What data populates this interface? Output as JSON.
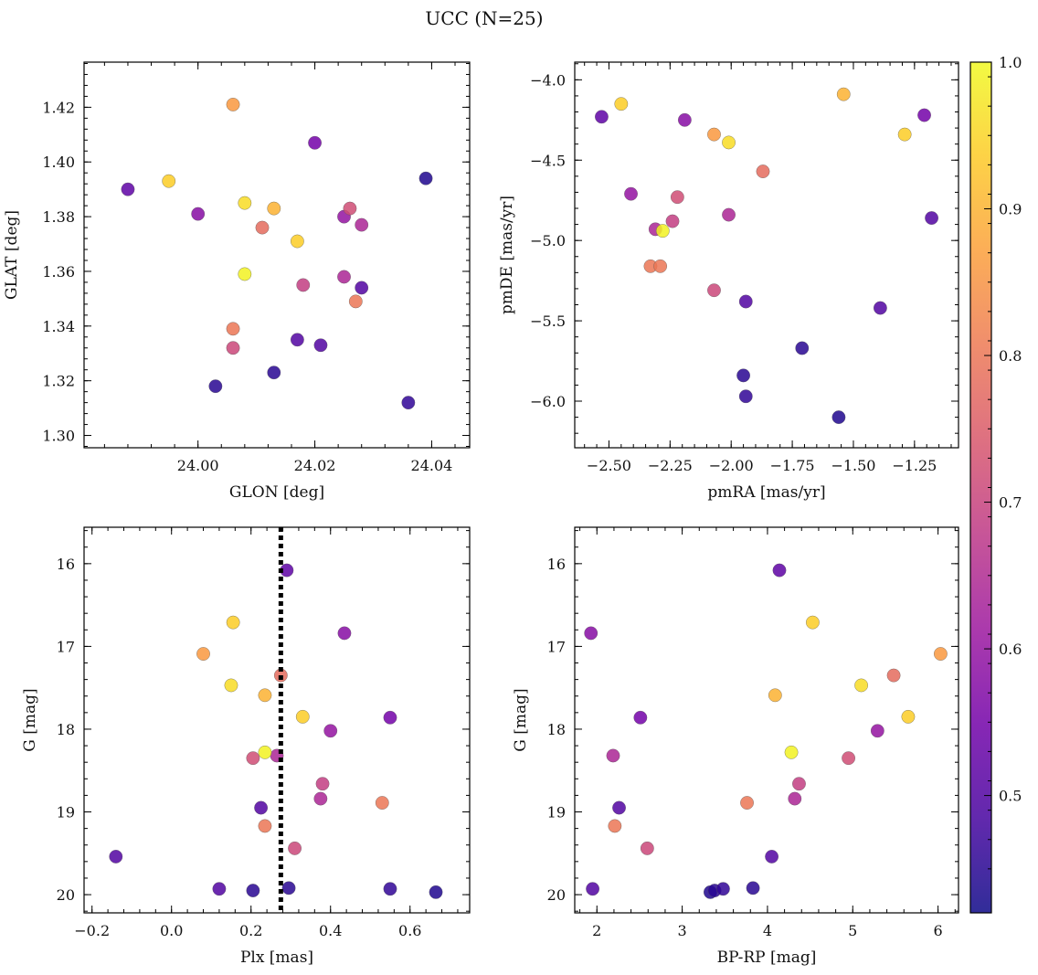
{
  "figure": {
    "title": "UCC (N=25)"
  },
  "colormap": {
    "name": "plasma",
    "stops": [
      "#0d0887",
      "#46039f",
      "#7201a8",
      "#9c179e",
      "#bd3786",
      "#d8576b",
      "#ed7953",
      "#fb9f3a",
      "#fdca26",
      "#f0f921"
    ],
    "vmin": 0.42,
    "vmax": 1.0,
    "ticks": [
      0.5,
      0.6,
      0.7,
      0.8,
      0.9,
      1.0
    ],
    "tick_labels": [
      "0.5",
      "0.6",
      "0.7",
      "0.8",
      "0.9",
      "1.0"
    ]
  },
  "stars": {
    "glon": [
      23.988,
      23.995,
      24.0,
      24.006,
      24.008,
      24.011,
      24.013,
      24.017,
      24.02,
      24.025,
      24.026,
      24.028,
      24.008,
      24.018,
      24.025,
      24.028,
      24.027,
      24.006,
      24.006,
      24.017,
      24.021,
      24.013,
      24.003,
      24.036,
      24.039
    ],
    "glat": [
      1.39,
      1.393,
      1.381,
      1.421,
      1.385,
      1.376,
      1.383,
      1.371,
      1.407,
      1.38,
      1.383,
      1.377,
      1.359,
      1.355,
      1.358,
      1.354,
      1.349,
      1.339,
      1.332,
      1.335,
      1.333,
      1.323,
      1.318,
      1.312,
      1.394
    ],
    "pmra": [
      -2.53,
      -2.45,
      -2.19,
      -2.07,
      -2.01,
      -1.87,
      -1.54,
      -1.29,
      -1.21,
      -2.41,
      -2.22,
      -2.31,
      -2.28,
      -2.24,
      -2.01,
      -1.18,
      -2.33,
      -2.29,
      -2.07,
      -1.94,
      -1.39,
      -1.71,
      -1.95,
      -1.94,
      -1.56
    ],
    "pmde": [
      -4.23,
      -4.15,
      -4.25,
      -4.34,
      -4.39,
      -4.57,
      -4.09,
      -4.34,
      -4.22,
      -4.71,
      -4.73,
      -4.93,
      -4.94,
      -4.88,
      -4.84,
      -4.86,
      -5.16,
      -5.16,
      -5.31,
      -5.38,
      -5.42,
      -5.67,
      -5.84,
      -5.97,
      -6.1
    ],
    "plx": [
      0.29,
      0.155,
      0.435,
      0.08,
      0.15,
      0.275,
      0.235,
      0.33,
      0.55,
      0.4,
      0.205,
      0.265,
      0.235,
      0.38,
      0.375,
      0.225,
      0.53,
      0.235,
      0.31,
      -0.14,
      0.12,
      0.205,
      0.295,
      0.55,
      0.665
    ],
    "bprp": [
      4.14,
      4.53,
      1.93,
      6.03,
      5.1,
      5.48,
      4.09,
      5.65,
      2.51,
      5.29,
      4.95,
      2.19,
      4.28,
      4.37,
      4.32,
      2.26,
      3.76,
      2.21,
      2.59,
      4.05,
      1.95,
      3.38,
      3.83,
      3.48,
      3.33
    ],
    "g": [
      16.08,
      16.71,
      16.84,
      17.09,
      17.47,
      17.35,
      17.59,
      17.85,
      17.86,
      18.02,
      18.35,
      18.32,
      18.28,
      18.66,
      18.84,
      18.95,
      18.89,
      19.17,
      19.44,
      19.54,
      19.93,
      19.95,
      19.92,
      19.93,
      19.97
    ],
    "prob": [
      0.52,
      0.94,
      0.58,
      0.86,
      0.96,
      0.78,
      0.9,
      0.94,
      0.55,
      0.6,
      0.72,
      0.64,
      0.99,
      0.69,
      0.64,
      0.5,
      0.8,
      0.8,
      0.71,
      0.5,
      0.5,
      0.45,
      0.45,
      0.46,
      0.44
    ]
  },
  "panels": [
    {
      "id": "sky",
      "x_field": "glon",
      "y_field": "glat",
      "xlabel": "GLON [deg]",
      "ylabel": "GLAT [deg]",
      "xlim": [
        23.9805,
        24.0465
      ],
      "ylim": [
        1.2955,
        1.4365
      ],
      "y_inverted": false,
      "xticks": [
        24.0,
        24.02,
        24.04
      ],
      "xtick_labels": [
        "24.00",
        "24.02",
        "24.04"
      ],
      "yticks": [
        1.3,
        1.32,
        1.34,
        1.36,
        1.38,
        1.4,
        1.42
      ],
      "ytick_labels": [
        "1.30",
        "1.32",
        "1.34",
        "1.36",
        "1.38",
        "1.40",
        "1.42"
      ]
    },
    {
      "id": "pm",
      "x_field": "pmra",
      "y_field": "pmde",
      "xlabel": "pmRA [mas/yr]",
      "ylabel": "pmDE [mas/yr]",
      "xlim": [
        -2.64,
        -1.07
      ],
      "ylim": [
        -6.29,
        -3.89
      ],
      "y_inverted": false,
      "xticks": [
        -2.5,
        -2.25,
        -2.0,
        -1.75,
        -1.5,
        -1.25
      ],
      "xtick_labels": [
        "−2.50",
        "−2.25",
        "−2.00",
        "−1.75",
        "−1.50",
        "−1.25"
      ],
      "yticks": [
        -6.0,
        -5.5,
        -5.0,
        -4.5,
        -4.0
      ],
      "ytick_labels": [
        "−6.0",
        "−5.5",
        "−5.0",
        "−4.5",
        "−4.0"
      ]
    },
    {
      "id": "plx",
      "x_field": "plx",
      "y_field": "g",
      "xlabel": "Plx [mas]",
      "ylabel": "G [mag]",
      "xlim": [
        -0.22,
        0.75
      ],
      "ylim": [
        15.56,
        20.22
      ],
      "y_inverted": true,
      "xticks": [
        -0.2,
        0.0,
        0.2,
        0.4,
        0.6
      ],
      "xtick_labels": [
        "−0.2",
        "0.0",
        "0.2",
        "0.4",
        "0.6"
      ],
      "yticks": [
        16,
        17,
        18,
        19,
        20
      ],
      "ytick_labels": [
        "16",
        "17",
        "18",
        "19",
        "20"
      ],
      "vline": 0.275
    },
    {
      "id": "cmd",
      "x_field": "bprp",
      "y_field": "g",
      "xlabel": "BP-RP [mag]",
      "ylabel": "G [mag]",
      "xlim": [
        1.74,
        6.24
      ],
      "ylim": [
        15.56,
        20.22
      ],
      "y_inverted": true,
      "xticks": [
        2,
        3,
        4,
        5,
        6
      ],
      "xtick_labels": [
        "2",
        "3",
        "4",
        "5",
        "6"
      ],
      "yticks": [
        16,
        17,
        18,
        19,
        20
      ],
      "ytick_labels": [
        "16",
        "17",
        "18",
        "19",
        "20"
      ]
    }
  ],
  "chart_data": [
    {
      "type": "scatter",
      "xlabel": "GLON [deg]",
      "ylabel": "GLAT [deg]",
      "xlim": [
        23.9805,
        24.0465
      ],
      "ylim": [
        1.2955,
        1.4365
      ],
      "color_by": "membership probability (colorbar 0.42–1.0)"
    },
    {
      "type": "scatter",
      "xlabel": "pmRA [mas/yr]",
      "ylabel": "pmDE [mas/yr]",
      "xlim": [
        -2.64,
        -1.07
      ],
      "ylim": [
        -6.29,
        -3.89
      ]
    },
    {
      "type": "scatter",
      "xlabel": "Plx [mas]",
      "ylabel": "G [mag]",
      "xlim": [
        -0.22,
        0.75
      ],
      "ylim": [
        20.22,
        15.56
      ],
      "reference_line_x": 0.275
    },
    {
      "type": "scatter",
      "xlabel": "BP-RP [mag]",
      "ylabel": "G [mag]",
      "xlim": [
        1.74,
        6.24
      ],
      "ylim": [
        20.22,
        15.56
      ]
    }
  ]
}
